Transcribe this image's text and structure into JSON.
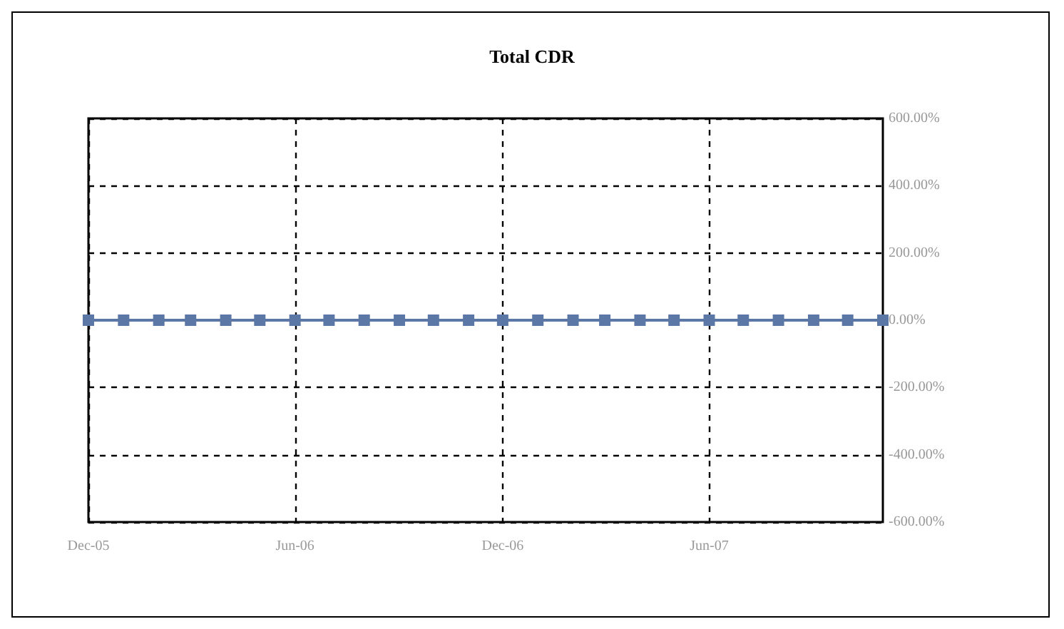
{
  "chart_data": {
    "type": "line",
    "title": "Total CDR",
    "x": [
      "2005-12",
      "2006-01",
      "2006-02",
      "2006-03",
      "2006-04",
      "2006-05",
      "2006-06",
      "2006-07",
      "2006-08",
      "2006-09",
      "2006-10",
      "2006-11",
      "2006-12",
      "2007-01",
      "2007-02",
      "2007-03",
      "2007-04",
      "2007-05",
      "2007-06",
      "2007-07",
      "2007-08",
      "2007-09",
      "2007-10",
      "2007-11"
    ],
    "series": [
      {
        "color": "#5b77a5",
        "values": [
          0,
          0,
          0,
          0,
          0,
          0,
          0,
          0,
          0,
          0,
          0,
          0,
          0,
          0,
          0,
          0,
          0,
          0,
          0,
          0,
          0,
          0,
          0,
          0
        ]
      }
    ],
    "xlim": [
      "2005-12",
      "2007-11"
    ],
    "xticks": [
      {
        "value": "2005-12",
        "label": "Dec-05"
      },
      {
        "value": "2006-06",
        "label": "Jun-06"
      },
      {
        "value": "2006-12",
        "label": "Dec-06"
      },
      {
        "value": "2007-06",
        "label": "Jun-07"
      }
    ],
    "ylim": [
      -600,
      600
    ],
    "yticks": [
      {
        "value": -600,
        "label": "-600.00%"
      },
      {
        "value": -400,
        "label": "-400.00%"
      },
      {
        "value": -200,
        "label": "-200.00%"
      },
      {
        "value": 0,
        "label": "0.00%"
      },
      {
        "value": 200,
        "label": "200.00%"
      },
      {
        "value": 400,
        "label": "400.00%"
      },
      {
        "value": 600,
        "label": "600.00%"
      }
    ],
    "grid": true,
    "marker": "square",
    "line_style": "solid"
  }
}
